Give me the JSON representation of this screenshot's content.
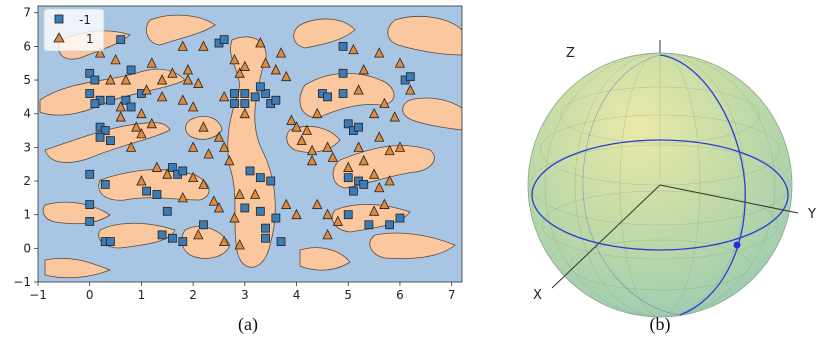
{
  "captions": {
    "a": "(a)",
    "b": "(b)"
  },
  "colors": {
    "background_region": "#a8c6e3",
    "positive_region": "#fac79e",
    "class_neg": "#3b7bb6",
    "class_pos": "#e08a3c",
    "sphere": "#b8d7a0",
    "great_circle": "#2a3bd6"
  },
  "chart_data": [
    {
      "type": "scatter",
      "title": "",
      "xlabel": "",
      "ylabel": "",
      "xlim": [
        -1,
        7.2
      ],
      "ylim": [
        -1,
        7.2
      ],
      "xticks": [
        -1,
        0,
        1,
        2,
        3,
        4,
        5,
        6,
        7
      ],
      "yticks": [
        -1,
        0,
        1,
        2,
        3,
        4,
        5,
        6,
        7
      ],
      "grid": false,
      "legend_position": "top-left",
      "background": "decision regions of a binary classifier (blue = -1, orange = 1)",
      "series": [
        {
          "name": "-1",
          "marker": "square",
          "points": [
            [
              0.0,
              5.2
            ],
            [
              0.1,
              5.0
            ],
            [
              0.0,
              4.6
            ],
            [
              0.2,
              4.4
            ],
            [
              0.1,
              4.3
            ],
            [
              0.4,
              4.4
            ],
            [
              0.7,
              4.4
            ],
            [
              0.8,
              4.2
            ],
            [
              1.0,
              4.6
            ],
            [
              0.2,
              3.6
            ],
            [
              0.3,
              3.5
            ],
            [
              0.2,
              3.3
            ],
            [
              0.4,
              3.2
            ],
            [
              0.6,
              6.2
            ],
            [
              0.8,
              5.3
            ],
            [
              0.0,
              2.2
            ],
            [
              0.3,
              1.9
            ],
            [
              0.0,
              1.3
            ],
            [
              0.0,
              0.8
            ],
            [
              0.3,
              0.2
            ],
            [
              0.4,
              0.2
            ],
            [
              1.1,
              1.7
            ],
            [
              1.3,
              1.6
            ],
            [
              1.6,
              2.4
            ],
            [
              1.7,
              2.2
            ],
            [
              1.8,
              2.3
            ],
            [
              1.5,
              1.1
            ],
            [
              1.4,
              0.4
            ],
            [
              1.6,
              0.3
            ],
            [
              1.8,
              0.2
            ],
            [
              2.2,
              0.7
            ],
            [
              2.5,
              6.1
            ],
            [
              2.6,
              6.2
            ],
            [
              2.8,
              4.6
            ],
            [
              2.8,
              4.3
            ],
            [
              3.0,
              4.6
            ],
            [
              3.0,
              4.3
            ],
            [
              3.2,
              4.5
            ],
            [
              3.4,
              4.6
            ],
            [
              3.5,
              4.3
            ],
            [
              3.6,
              4.4
            ],
            [
              3.3,
              4.8
            ],
            [
              3.1,
              2.3
            ],
            [
              3.3,
              2.1
            ],
            [
              3.5,
              2.0
            ],
            [
              3.0,
              1.2
            ],
            [
              3.3,
              1.1
            ],
            [
              3.4,
              0.6
            ],
            [
              3.6,
              0.9
            ],
            [
              3.7,
              0.2
            ],
            [
              3.4,
              0.3
            ],
            [
              4.5,
              4.6
            ],
            [
              4.6,
              4.5
            ],
            [
              4.9,
              4.6
            ],
            [
              4.9,
              5.2
            ],
            [
              4.9,
              6.0
            ],
            [
              5.0,
              3.7
            ],
            [
              5.1,
              3.5
            ],
            [
              5.2,
              3.6
            ],
            [
              5.0,
              2.1
            ],
            [
              5.2,
              2.0
            ],
            [
              5.1,
              1.7
            ],
            [
              5.3,
              1.9
            ],
            [
              5.0,
              1.0
            ],
            [
              5.4,
              0.7
            ],
            [
              5.8,
              0.7
            ],
            [
              6.0,
              0.9
            ],
            [
              6.1,
              5.0
            ],
            [
              6.2,
              5.1
            ]
          ]
        },
        {
          "name": "1",
          "marker": "triangle",
          "points": [
            [
              0.2,
              5.8
            ],
            [
              0.5,
              5.6
            ],
            [
              0.7,
              5.0
            ],
            [
              0.4,
              5.0
            ],
            [
              0.6,
              4.2
            ],
            [
              1.0,
              4.0
            ],
            [
              0.6,
              3.9
            ],
            [
              0.9,
              3.6
            ],
            [
              1.2,
              3.7
            ],
            [
              1.0,
              3.4
            ],
            [
              0.8,
              3.0
            ],
            [
              1.2,
              5.5
            ],
            [
              1.4,
              5.0
            ],
            [
              1.6,
              5.2
            ],
            [
              1.9,
              5.3
            ],
            [
              1.9,
              5.0
            ],
            [
              2.1,
              4.9
            ],
            [
              1.8,
              4.4
            ],
            [
              2.0,
              4.2
            ],
            [
              2.2,
              3.6
            ],
            [
              2.0,
              3.0
            ],
            [
              2.3,
              2.8
            ],
            [
              2.5,
              3.3
            ],
            [
              2.6,
              3.0
            ],
            [
              2.7,
              2.6
            ],
            [
              1.8,
              6.0
            ],
            [
              2.2,
              6.0
            ],
            [
              2.8,
              5.6
            ],
            [
              2.9,
              5.2
            ],
            [
              3.0,
              5.4
            ],
            [
              3.4,
              5.5
            ],
            [
              3.6,
              5.3
            ],
            [
              3.8,
              5.1
            ],
            [
              3.7,
              5.8
            ],
            [
              3.3,
              6.1
            ],
            [
              3.9,
              3.8
            ],
            [
              4.0,
              3.6
            ],
            [
              4.2,
              3.5
            ],
            [
              4.1,
              3.2
            ],
            [
              4.3,
              2.9
            ],
            [
              4.3,
              2.6
            ],
            [
              4.6,
              3.0
            ],
            [
              4.7,
              2.7
            ],
            [
              1.0,
              2.0
            ],
            [
              1.3,
              2.4
            ],
            [
              1.5,
              2.2
            ],
            [
              2.0,
              2.1
            ],
            [
              2.2,
              1.9
            ],
            [
              1.8,
              1.5
            ],
            [
              2.4,
              1.4
            ],
            [
              2.5,
              1.2
            ],
            [
              2.9,
              1.6
            ],
            [
              2.8,
              0.9
            ],
            [
              2.1,
              0.4
            ],
            [
              2.6,
              0.2
            ],
            [
              2.9,
              0.1
            ],
            [
              3.2,
              1.6
            ],
            [
              3.8,
              1.3
            ],
            [
              4.0,
              1.0
            ],
            [
              4.4,
              1.3
            ],
            [
              4.6,
              1.0
            ],
            [
              4.8,
              0.8
            ],
            [
              4.6,
              0.4
            ],
            [
              5.0,
              2.4
            ],
            [
              5.3,
              2.6
            ],
            [
              5.5,
              2.2
            ],
            [
              5.6,
              1.8
            ],
            [
              5.8,
              2.0
            ],
            [
              5.7,
              1.3
            ],
            [
              5.5,
              1.1
            ],
            [
              5.2,
              3.0
            ],
            [
              5.6,
              3.3
            ],
            [
              5.8,
              2.9
            ],
            [
              6.0,
              3.0
            ],
            [
              5.5,
              4.0
            ],
            [
              5.7,
              4.3
            ],
            [
              5.9,
              3.9
            ],
            [
              5.3,
              5.3
            ],
            [
              5.6,
              5.8
            ],
            [
              5.1,
              5.9
            ],
            [
              6.0,
              5.5
            ],
            [
              6.2,
              4.7
            ],
            [
              5.2,
              4.7
            ],
            [
              4.4,
              4.0
            ],
            [
              3.0,
              4.0
            ],
            [
              2.6,
              4.5
            ],
            [
              1.4,
              4.5
            ],
            [
              1.1,
              4.7
            ]
          ]
        }
      ]
    }
  ],
  "sphere": {
    "axis_labels": {
      "x": "X",
      "y": "Y",
      "z": "Z"
    }
  }
}
